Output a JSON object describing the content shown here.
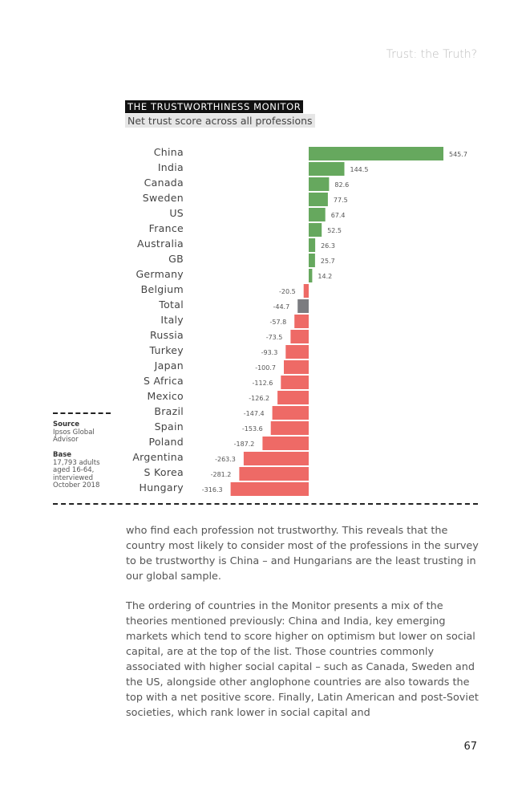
{
  "header": {
    "running_title": "Trust: the Truth?"
  },
  "chart_data": {
    "type": "bar",
    "orientation": "horizontal",
    "title": "THE TRUSTWORTHINESS MONITOR",
    "subtitle": "Net trust score across all professions",
    "categories": [
      "China",
      "India",
      "Canada",
      "Sweden",
      "US",
      "France",
      "Australia",
      "GB",
      "Germany",
      "Belgium",
      "Total",
      "Italy",
      "Russia",
      "Turkey",
      "Japan",
      "S Africa",
      "Mexico",
      "Brazil",
      "Spain",
      "Poland",
      "Argentina",
      "S Korea",
      "Hungary"
    ],
    "values": [
      545.7,
      144.5,
      82.6,
      77.5,
      67.4,
      52.5,
      26.3,
      25.7,
      14.2,
      -20.5,
      -44.7,
      -57.8,
      -73.5,
      -93.3,
      -100.7,
      -112.6,
      -126.2,
      -147.4,
      -153.6,
      -187.2,
      -263.3,
      -281.2,
      -316.3
    ],
    "labels": [
      "545.7",
      "144.5",
      "82.6",
      "77.5",
      "67.4",
      "52.5",
      "26.3",
      "25.7",
      "14.2",
      "-20.5",
      "-44.7",
      "-57.8",
      "-73.5",
      "-93.3",
      "-100.7",
      "-112.6",
      "-126.2",
      "-147.4",
      "-153.6",
      "-187.2",
      "-263.3",
      "-281.2",
      "-316.3"
    ],
    "highlight_category": "Total",
    "colors": {
      "positive": "#66a85e",
      "negative": "#ee6a66",
      "total": "#7b7c80"
    },
    "xlim": [
      -316.3,
      545.7
    ],
    "grid": false
  },
  "sidebar": {
    "source_label": "Source",
    "source_text": "Ipsos Global Advisor",
    "base_label": "Base",
    "base_text": "17,793 adults aged 16-64, interviewed October 2018"
  },
  "body": {
    "paragraph1": "who find each profession not trustworthy. This reveals that the country most likely to consider most of the professions in the survey to be trustworthy is China – and Hungarians are the least trusting in our global sample.",
    "paragraph2": "The ordering of countries in the Monitor presents a mix of the theories mentioned previously: China and India, key emerging markets which tend to score higher on optimism but lower on social capital, are at the top of the list. Those countries commonly associated with higher social capital – such as Canada, Sweden and the US, alongside other anglophone countries are also towards the top with a net positive score. Finally, Latin American and post-Soviet societies, which rank lower in social capital and"
  },
  "footer": {
    "page_number": "67"
  }
}
